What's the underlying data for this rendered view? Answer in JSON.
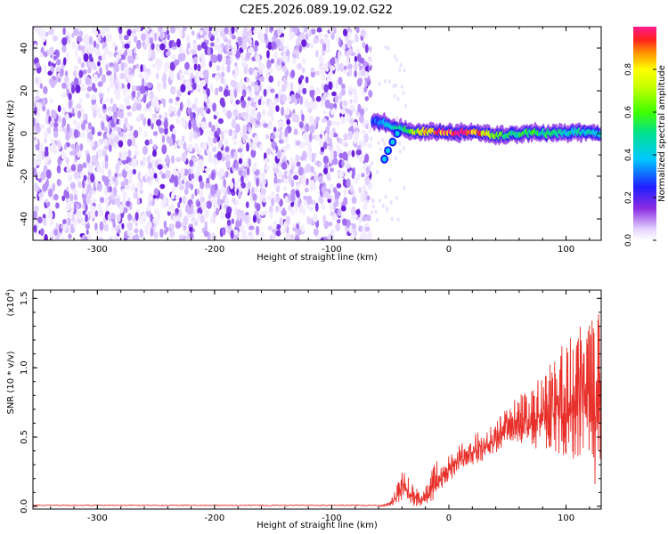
{
  "title": "C2E5.2026.089.19.02.G22",
  "chart_data": [
    {
      "type": "heatmap",
      "name": "spectrogram",
      "xlabel": "Height of straight line (km)",
      "ylabel": "Frequency (Hz)",
      "xlim": [
        -355,
        130
      ],
      "ylim": [
        -50,
        50
      ],
      "xticks": [
        -300,
        -200,
        -100,
        0,
        100
      ],
      "yticks": [
        -40,
        -20,
        0,
        20,
        40
      ],
      "xtick_labels": [
        "-300",
        "-200",
        "-100",
        "0",
        "100"
      ],
      "ytick_labels": [
        "-40",
        "-20",
        "0",
        "20",
        "40"
      ],
      "noise_region_x": [
        -355,
        -67
      ],
      "signal_track": {
        "x": [
          -65,
          -55,
          -45,
          -35,
          -20,
          -5,
          10,
          25,
          40,
          55,
          70,
          85,
          100,
          115,
          130
        ],
        "frequency": [
          6,
          5,
          3,
          1,
          1,
          0.5,
          0.5,
          0.5,
          -1,
          -0.5,
          0.5,
          0,
          0.5,
          0.5,
          0
        ],
        "amplitude": [
          0.25,
          0.4,
          0.45,
          0.55,
          0.8,
          0.95,
          1.0,
          0.9,
          0.6,
          0.5,
          0.55,
          0.5,
          0.45,
          0.45,
          0.4
        ]
      },
      "branch_track": {
        "x": [
          -55,
          -52,
          -48,
          -44
        ],
        "frequency": [
          -12,
          -8,
          -4,
          0
        ]
      },
      "colorbar": {
        "label": "Normalized spectral amplitude",
        "range": [
          0,
          1
        ],
        "ticks": [
          0.0,
          0.2,
          0.4,
          0.6,
          0.8
        ],
        "tick_labels": [
          "0.0",
          "0.2",
          "0.4",
          "0.6",
          "0.8"
        ]
      }
    },
    {
      "type": "line",
      "name": "snr",
      "xlabel": "Height of straight line (km)",
      "ylabel": "SNR (10 * v/v)",
      "y_multiplier": "(x10",
      "y_multiplier_exp": "4",
      "y_multiplier_close": ")",
      "xlim": [
        -355,
        130
      ],
      "ylim": [
        -0.02,
        1.56
      ],
      "xticks": [
        -300,
        -200,
        -100,
        0,
        100
      ],
      "yticks": [
        0.0,
        0.5,
        1.0,
        1.5
      ],
      "xtick_labels": [
        "-300",
        "-200",
        "-100",
        "0",
        "100"
      ],
      "ytick_labels": [
        "0.0",
        "0.5",
        "1.0",
        "1.5"
      ],
      "color": "#e8302a",
      "envelope": {
        "x": [
          -355,
          -60,
          -50,
          -42,
          -38,
          -34,
          -28,
          -22,
          -18,
          -10,
          0,
          10,
          20,
          30,
          40,
          50,
          60,
          70,
          80,
          90,
          100,
          110,
          120,
          125,
          130
        ],
        "low": [
          0.0,
          0.0,
          0.0,
          0.02,
          0.02,
          0.0,
          0.0,
          0.0,
          0.02,
          0.05,
          0.18,
          0.25,
          0.3,
          0.33,
          0.38,
          0.45,
          0.45,
          0.4,
          0.42,
          0.4,
          0.35,
          0.3,
          0.2,
          0.1,
          0.3
        ],
        "high": [
          0.01,
          0.01,
          0.03,
          0.2,
          0.3,
          0.2,
          0.15,
          0.1,
          0.2,
          0.35,
          0.38,
          0.45,
          0.52,
          0.55,
          0.6,
          0.75,
          0.8,
          0.85,
          0.95,
          1.1,
          1.2,
          1.3,
          1.35,
          1.5,
          1.55
        ]
      }
    }
  ]
}
